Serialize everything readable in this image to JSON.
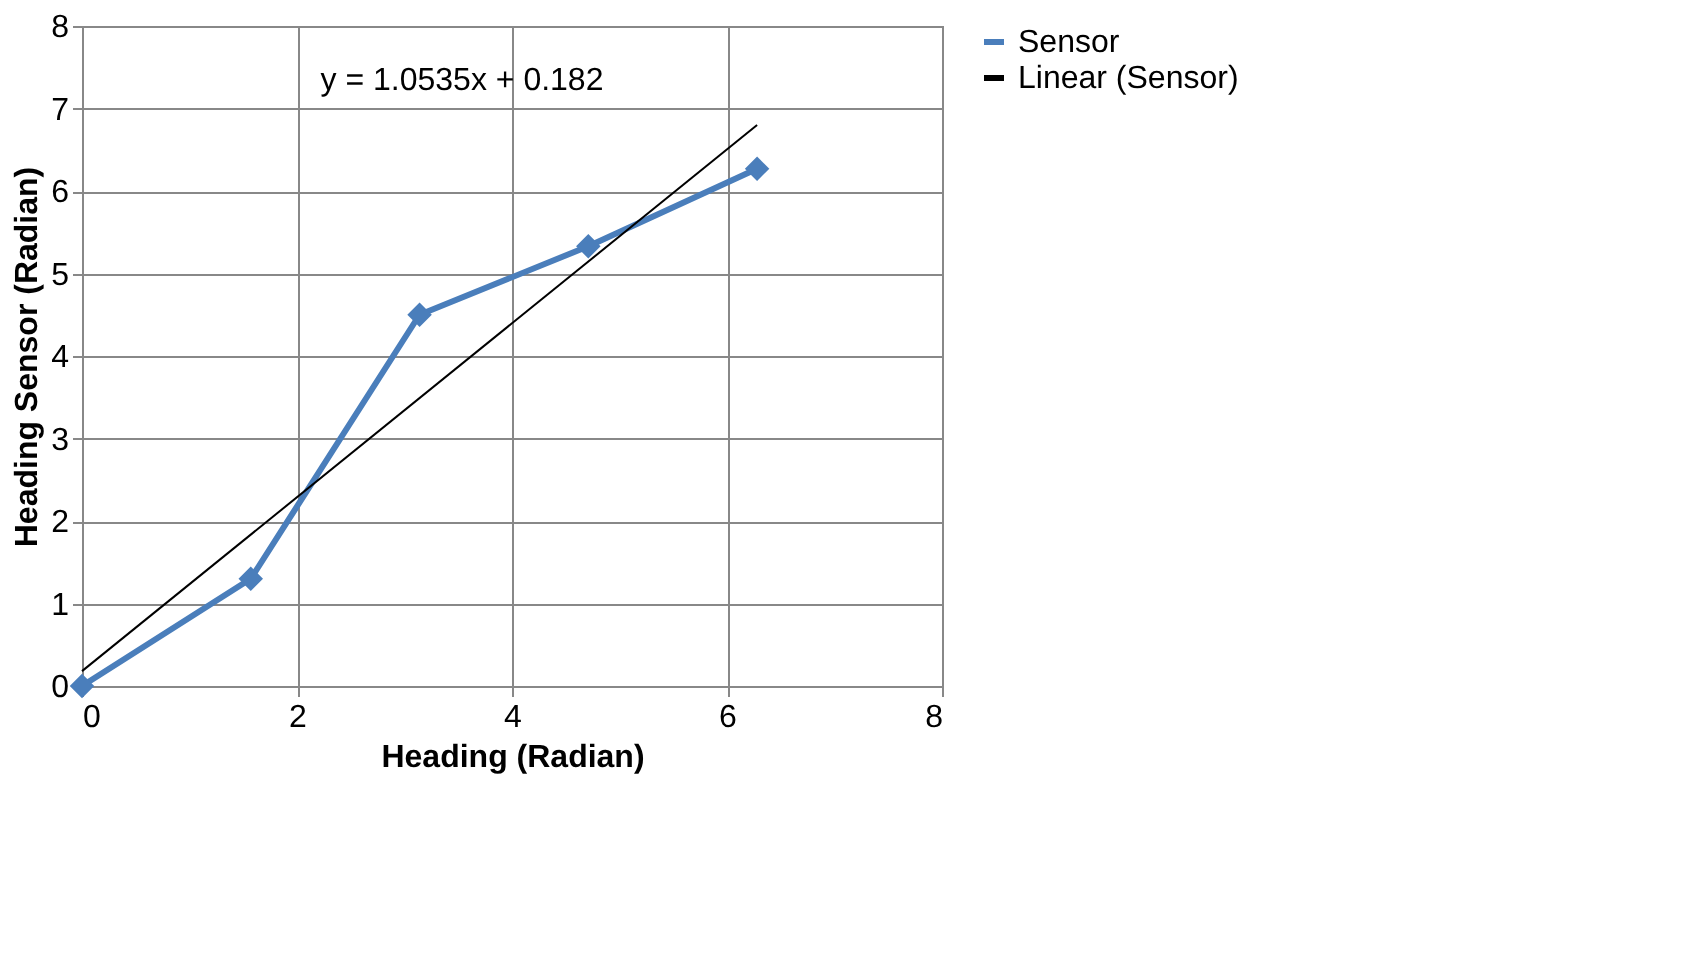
{
  "chart_data": {
    "type": "line",
    "xlabel": "Heading (Radian)",
    "ylabel": "Heading Sensor (Radian)",
    "x": [
      0,
      1.57,
      3.14,
      4.71,
      6.28
    ],
    "series": [
      {
        "name": "Sensor",
        "color": "#4a7ebb",
        "values": [
          0,
          1.3,
          4.5,
          5.33,
          6.27
        ],
        "marker": "diamond"
      },
      {
        "name": "Linear (Sensor)",
        "color": "#000000",
        "type": "line",
        "x": [
          0,
          6.28
        ],
        "values": [
          0.18,
          6.8
        ],
        "marker": "none"
      }
    ],
    "xlim": [
      0,
      8
    ],
    "xticks": [
      0,
      2,
      4,
      6,
      8
    ],
    "ylim": [
      0,
      8
    ],
    "yticks": [
      0,
      1,
      2,
      3,
      4,
      5,
      6,
      7,
      8
    ],
    "grid": true,
    "legend": "right",
    "annotations": [
      "y = 1.0535x + 0.182"
    ]
  }
}
